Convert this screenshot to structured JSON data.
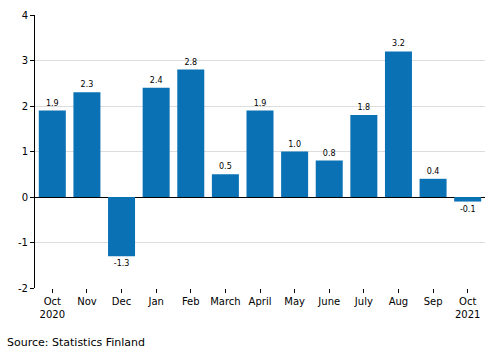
{
  "chart_data": {
    "type": "bar",
    "categories": [
      "Oct\n2020",
      "Nov",
      "Dec",
      "Jan",
      "Feb",
      "March",
      "April",
      "May",
      "June",
      "July",
      "Aug",
      "Sep",
      "Oct\n2021"
    ],
    "values": [
      1.9,
      2.3,
      -1.3,
      2.4,
      2.8,
      0.5,
      1.9,
      1.0,
      0.8,
      1.8,
      3.2,
      0.4,
      -0.1
    ],
    "value_labels": [
      "1.9",
      "2.3",
      "-1.3",
      "2.4",
      "2.8",
      "0.5",
      "1.9",
      "1.0",
      "0.8",
      "1.8",
      "3.2",
      "0.4",
      "-0.1"
    ],
    "color": "#0a72b4",
    "ylim": [
      -2,
      4
    ],
    "yticks": [
      -2,
      -1,
      0,
      1,
      2,
      3,
      4
    ],
    "grid": true,
    "data_labels": true,
    "annotations": [
      "Source: Statistics Finland"
    ]
  }
}
